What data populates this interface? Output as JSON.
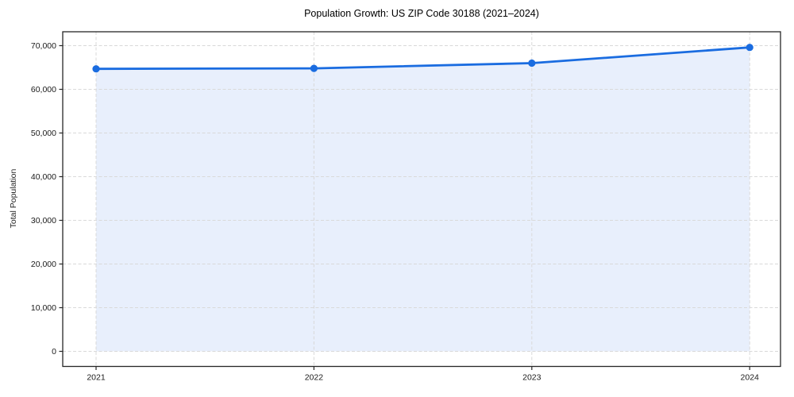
{
  "figure": {
    "title": "Population Growth: US ZIP Code 30188 (2021–2024)",
    "ylabel": "Total Population"
  },
  "chart_data": {
    "type": "line",
    "title": "Population Growth: US ZIP Code 30188 (2021–2024)",
    "xlabel": "",
    "ylabel": "Total Population",
    "x": [
      2021,
      2022,
      2023,
      2024
    ],
    "series": [
      {
        "name": "Total Population",
        "values": [
          64700,
          64800,
          66000,
          69600
        ]
      }
    ],
    "xtick_labels": [
      "2021",
      "2022",
      "2023",
      "2024"
    ],
    "ytick_labels": [
      "0",
      "10,000",
      "20,000",
      "30,000",
      "40,000",
      "50,000",
      "60,000",
      "70,000"
    ],
    "ytick_values": [
      0,
      10000,
      20000,
      30000,
      40000,
      50000,
      60000,
      70000
    ],
    "ylim": [
      -3500,
      73200
    ],
    "grid": true,
    "grid_style": "dashed",
    "legend_position": "none",
    "marker": "circle",
    "area_fill": true,
    "colors": {
      "line": "#1a6ce0",
      "marker": "#1a6ce0",
      "fill": "#e8effc",
      "grid": "#d9d9d9",
      "spine": "#262626",
      "tick_text": "#1a1a1a",
      "title_text": "#000000",
      "background": "#ffffff"
    }
  }
}
